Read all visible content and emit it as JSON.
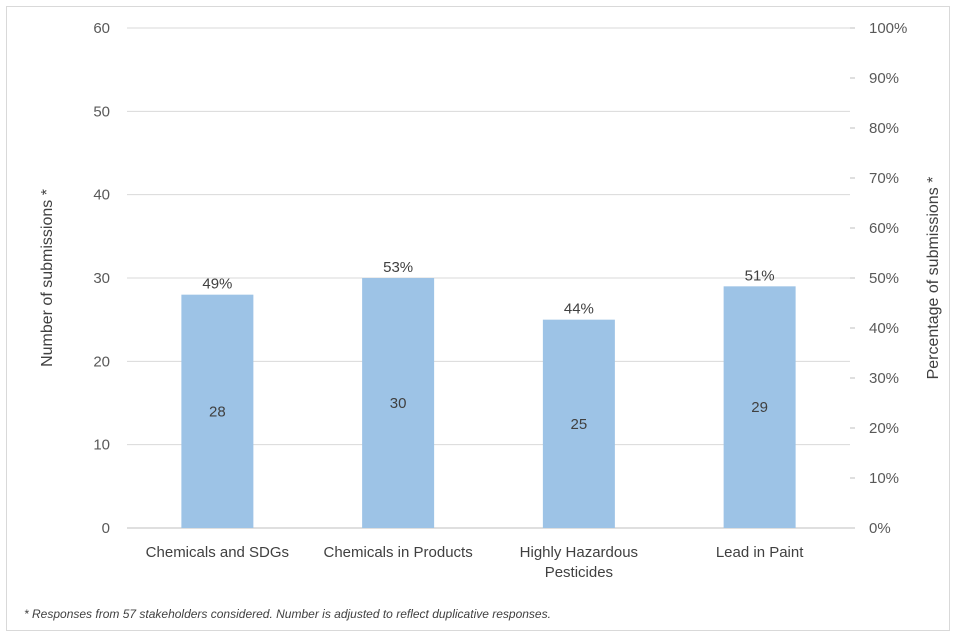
{
  "chart_data": {
    "type": "bar",
    "categories": [
      [
        "Chemicals and SDGs"
      ],
      [
        "Chemicals in Products"
      ],
      [
        "Highly Hazardous",
        "Pesticides"
      ],
      [
        "Lead in Paint"
      ]
    ],
    "series": [
      {
        "values": [
          28,
          30,
          25,
          29
        ],
        "percent_labels": [
          "49%",
          "53%",
          "44%",
          "51%"
        ],
        "color": "#9dc3e6"
      }
    ],
    "ylabel": "Number of submissions *",
    "y2label": "Percentage of submissions *",
    "ylim": [
      0,
      60
    ],
    "yticks": [
      0,
      10,
      20,
      30,
      40,
      50,
      60
    ],
    "y2lim": [
      0,
      100
    ],
    "y2ticks": [
      "0%",
      "10%",
      "20%",
      "30%",
      "40%",
      "50%",
      "60%",
      "70%",
      "80%",
      "90%",
      "100%"
    ],
    "gridlines": true,
    "legend": "none"
  },
  "footnote": "* Responses from 57 stakeholders considered. Number is adjusted to reflect duplicative responses."
}
